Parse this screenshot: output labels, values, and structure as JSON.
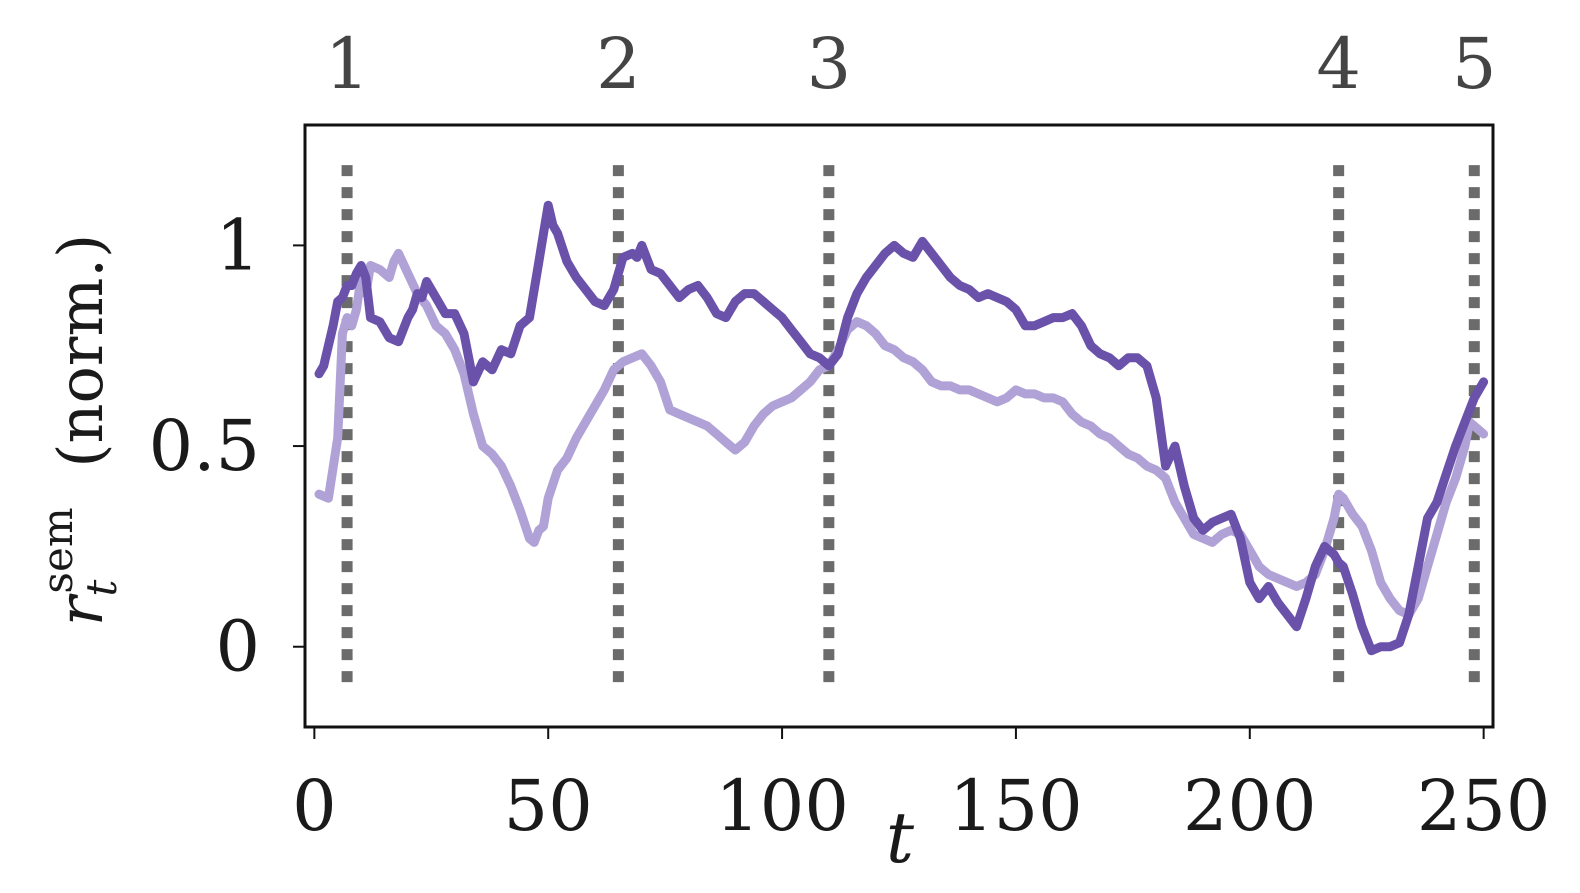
{
  "chart_data": {
    "type": "line",
    "title": "",
    "xlabel": "t",
    "ylabel": {
      "symbol": "r",
      "subscript": "t",
      "superscript": "sem",
      "suffix": "(norm.)"
    },
    "xlim": [
      -2,
      252
    ],
    "ylim": [
      -0.2,
      1.3
    ],
    "xticks": [
      0,
      50,
      100,
      150,
      200,
      250
    ],
    "xtick_labels": [
      "0",
      "50",
      "100",
      "150",
      "200",
      "250"
    ],
    "yticks": [
      0,
      0.5,
      1
    ],
    "ytick_labels": [
      "0",
      "0.5",
      "1"
    ],
    "grid": false,
    "legend": "none",
    "event_markers": [
      {
        "label": "1",
        "x": 7
      },
      {
        "label": "2",
        "x": 65
      },
      {
        "label": "3",
        "x": 110
      },
      {
        "label": "4",
        "x": 219
      },
      {
        "label": "5",
        "x": 248
      }
    ],
    "series": [
      {
        "color": "#b0a2d6",
        "x": [
          1,
          3,
          5,
          6,
          7,
          8,
          9,
          10,
          11,
          12,
          14,
          16,
          17,
          18,
          20,
          22,
          24,
          26,
          28,
          30,
          32,
          34,
          36,
          38,
          40,
          42,
          44,
          46,
          47,
          48,
          49,
          50,
          52,
          54,
          56,
          58,
          60,
          62,
          64,
          66,
          68,
          70,
          72,
          74,
          76,
          78,
          80,
          82,
          84,
          86,
          88,
          90,
          92,
          94,
          96,
          98,
          100,
          102,
          104,
          106,
          108,
          110,
          112,
          114,
          116,
          118,
          120,
          122,
          124,
          126,
          128,
          130,
          132,
          134,
          136,
          138,
          140,
          142,
          144,
          146,
          148,
          150,
          152,
          154,
          156,
          158,
          160,
          162,
          164,
          166,
          168,
          170,
          172,
          174,
          176,
          178,
          180,
          182,
          184,
          186,
          188,
          190,
          192,
          194,
          196,
          198,
          200,
          202,
          204,
          206,
          208,
          210,
          212,
          214,
          216,
          218,
          219,
          220,
          222,
          224,
          226,
          228,
          230,
          232,
          234,
          236,
          238,
          240,
          242,
          244,
          246,
          247,
          248,
          250
        ],
        "values": [
          0.38,
          0.37,
          0.52,
          0.78,
          0.82,
          0.8,
          0.84,
          0.92,
          0.88,
          0.95,
          0.94,
          0.92,
          0.96,
          0.98,
          0.93,
          0.88,
          0.85,
          0.8,
          0.78,
          0.74,
          0.68,
          0.58,
          0.5,
          0.48,
          0.45,
          0.4,
          0.34,
          0.27,
          0.26,
          0.29,
          0.3,
          0.37,
          0.44,
          0.47,
          0.52,
          0.56,
          0.6,
          0.64,
          0.69,
          0.71,
          0.72,
          0.73,
          0.7,
          0.66,
          0.59,
          0.58,
          0.57,
          0.56,
          0.55,
          0.53,
          0.51,
          0.49,
          0.51,
          0.55,
          0.58,
          0.6,
          0.61,
          0.62,
          0.64,
          0.66,
          0.69,
          0.7,
          0.74,
          0.79,
          0.81,
          0.8,
          0.78,
          0.75,
          0.74,
          0.72,
          0.71,
          0.69,
          0.66,
          0.65,
          0.65,
          0.64,
          0.64,
          0.63,
          0.62,
          0.61,
          0.62,
          0.64,
          0.63,
          0.63,
          0.62,
          0.62,
          0.61,
          0.58,
          0.56,
          0.55,
          0.53,
          0.52,
          0.5,
          0.48,
          0.47,
          0.45,
          0.44,
          0.42,
          0.36,
          0.32,
          0.28,
          0.27,
          0.26,
          0.28,
          0.29,
          0.28,
          0.24,
          0.2,
          0.18,
          0.17,
          0.16,
          0.15,
          0.16,
          0.18,
          0.24,
          0.32,
          0.38,
          0.37,
          0.33,
          0.3,
          0.24,
          0.16,
          0.12,
          0.09,
          0.08,
          0.12,
          0.2,
          0.28,
          0.36,
          0.42,
          0.5,
          0.56,
          0.55,
          0.53
        ]
      },
      {
        "color": "#6a52aa",
        "x": [
          1,
          2,
          3,
          4,
          5,
          6,
          7,
          8,
          9,
          10,
          11,
          12,
          14,
          16,
          18,
          20,
          21,
          22,
          23,
          24,
          26,
          28,
          30,
          32,
          34,
          36,
          38,
          40,
          42,
          44,
          46,
          48,
          49,
          50,
          51,
          52,
          54,
          56,
          58,
          60,
          62,
          64,
          66,
          68,
          69,
          70,
          72,
          74,
          76,
          78,
          80,
          82,
          84,
          86,
          88,
          90,
          92,
          94,
          96,
          98,
          100,
          102,
          104,
          106,
          108,
          110,
          112,
          114,
          116,
          118,
          120,
          122,
          124,
          126,
          128,
          130,
          132,
          134,
          136,
          138,
          140,
          142,
          144,
          146,
          148,
          150,
          152,
          154,
          156,
          158,
          160,
          162,
          164,
          166,
          168,
          170,
          172,
          174,
          176,
          178,
          180,
          182,
          184,
          186,
          188,
          190,
          192,
          194,
          196,
          198,
          200,
          202,
          204,
          206,
          208,
          210,
          212,
          214,
          216,
          218,
          219,
          220,
          222,
          224,
          226,
          228,
          230,
          232,
          234,
          236,
          238,
          240,
          242,
          244,
          246,
          248,
          250
        ],
        "values": [
          0.68,
          0.7,
          0.75,
          0.8,
          0.86,
          0.87,
          0.9,
          0.9,
          0.93,
          0.95,
          0.92,
          0.82,
          0.81,
          0.77,
          0.76,
          0.82,
          0.84,
          0.88,
          0.87,
          0.91,
          0.87,
          0.83,
          0.83,
          0.78,
          0.66,
          0.71,
          0.69,
          0.74,
          0.73,
          0.8,
          0.82,
          0.96,
          1.03,
          1.1,
          1.05,
          1.03,
          0.96,
          0.92,
          0.89,
          0.86,
          0.85,
          0.89,
          0.97,
          0.98,
          0.97,
          1.0,
          0.94,
          0.93,
          0.9,
          0.87,
          0.89,
          0.9,
          0.87,
          0.83,
          0.82,
          0.86,
          0.88,
          0.88,
          0.86,
          0.84,
          0.82,
          0.79,
          0.76,
          0.73,
          0.72,
          0.7,
          0.73,
          0.82,
          0.88,
          0.92,
          0.95,
          0.98,
          1.0,
          0.98,
          0.97,
          1.01,
          0.98,
          0.95,
          0.92,
          0.9,
          0.89,
          0.87,
          0.88,
          0.87,
          0.86,
          0.84,
          0.8,
          0.8,
          0.81,
          0.82,
          0.82,
          0.83,
          0.8,
          0.75,
          0.73,
          0.72,
          0.7,
          0.72,
          0.72,
          0.7,
          0.62,
          0.45,
          0.5,
          0.4,
          0.32,
          0.29,
          0.31,
          0.32,
          0.33,
          0.27,
          0.16,
          0.12,
          0.15,
          0.11,
          0.08,
          0.05,
          0.12,
          0.2,
          0.25,
          0.23,
          0.21,
          0.2,
          0.13,
          0.05,
          -0.01,
          0.0,
          0.0,
          0.01,
          0.08,
          0.2,
          0.32,
          0.36,
          0.43,
          0.5,
          0.56,
          0.62,
          0.66
        ]
      }
    ]
  }
}
